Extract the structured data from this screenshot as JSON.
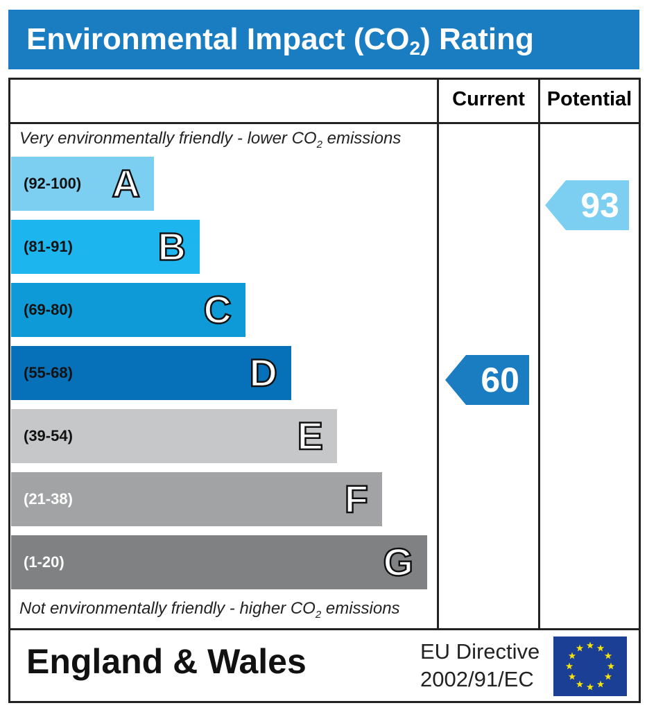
{
  "chart_data": {
    "type": "bar",
    "title": "Environmental Impact (CO2) Rating",
    "columns": [
      "Current",
      "Potential"
    ],
    "top_note": "Very environmentally friendly - lower CO2 emissions",
    "bottom_note": "Not environmentally friendly - higher CO2 emissions",
    "bands": [
      {
        "letter": "A",
        "range": "(92-100)",
        "color": "#7dcff2",
        "text_color": "#111"
      },
      {
        "letter": "B",
        "range": "(81-91)",
        "color": "#1db5ee",
        "text_color": "#111"
      },
      {
        "letter": "C",
        "range": "(69-80)",
        "color": "#0d9ad6",
        "text_color": "#111"
      },
      {
        "letter": "D",
        "range": "(55-68)",
        "color": "#0671b8",
        "text_color": "#111"
      },
      {
        "letter": "E",
        "range": "(39-54)",
        "color": "#c6c7c9",
        "text_color": "#111"
      },
      {
        "letter": "F",
        "range": "(21-38)",
        "color": "#a2a3a5",
        "text_color": "#fff"
      },
      {
        "letter": "G",
        "range": "(1-20)",
        "color": "#808183",
        "text_color": "#fff"
      }
    ],
    "current": {
      "value": "60",
      "band": "D",
      "color": "#1a7dc2"
    },
    "potential": {
      "value": "93",
      "band": "A",
      "color": "#7dcff2"
    }
  },
  "title_main": "Environmental Impact (CO",
  "title_sub": "2",
  "title_end": ") Rating",
  "top_note_a": "Very environmentally friendly - lower CO",
  "top_note_b": " emissions",
  "bottom_note_a": "Not environmentally friendly - higher CO",
  "bottom_note_b": " emissions",
  "sub2": "2",
  "footer": {
    "country": "England & Wales",
    "directive_line1": "EU Directive",
    "directive_line2": "2002/91/EC"
  }
}
